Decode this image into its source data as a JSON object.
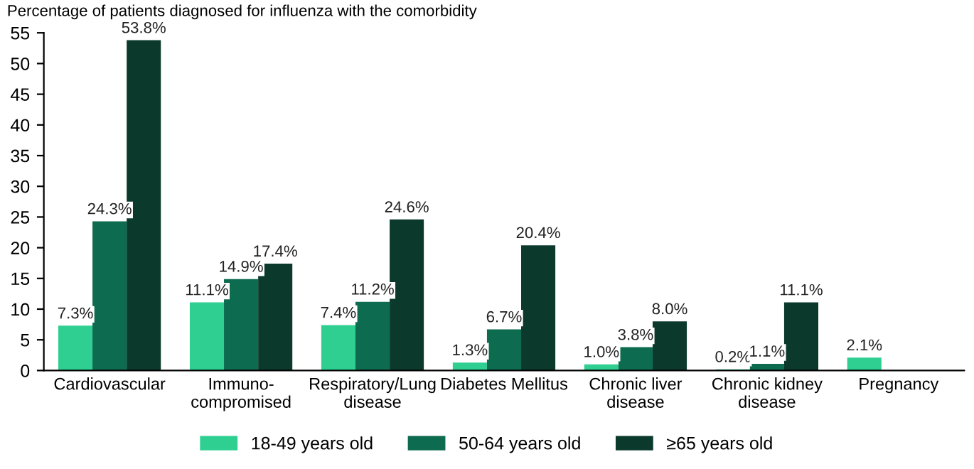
{
  "chart_data": {
    "type": "bar",
    "ylabel": "Percentage of patients diagnosed for influenza with the comorbidity",
    "categories": [
      "Cardiovascular",
      "Immuno-\ncompromised",
      "Respiratory/Lung\ndisease",
      "Diabetes Mellitus",
      "Chronic liver\ndisease",
      "Chronic kidney\ndisease",
      "Pregnancy"
    ],
    "series": [
      {
        "name": "18-49 years old",
        "color": "#2ecf91",
        "values": [
          7.3,
          11.1,
          7.4,
          1.3,
          1.0,
          0.2,
          2.1
        ],
        "value_labels": [
          "7.3%",
          "11.1%",
          "7.4%",
          "1.3%",
          "1.0%",
          "0.2%",
          "2.1%"
        ]
      },
      {
        "name": "50-64 years old",
        "color": "#0d6b4f",
        "values": [
          24.3,
          14.9,
          11.2,
          6.7,
          3.8,
          1.1,
          null
        ],
        "value_labels": [
          "24.3%",
          "14.9%",
          "11.2%",
          "6.7%",
          "3.8%",
          "1.1%",
          null
        ]
      },
      {
        "name": "≥65 years old",
        "color": "#0b3a2d",
        "values": [
          53.8,
          17.4,
          24.6,
          20.4,
          8.0,
          11.1,
          null
        ],
        "value_labels": [
          "53.8%",
          "17.4%",
          "24.6%",
          "20.4%",
          "8.0%",
          "11.1%",
          null
        ]
      }
    ],
    "ylim": [
      0,
      55
    ],
    "yticks": [
      0,
      5,
      10,
      15,
      20,
      25,
      30,
      35,
      40,
      45,
      50,
      55
    ],
    "grid": false,
    "legend": "bottom"
  }
}
